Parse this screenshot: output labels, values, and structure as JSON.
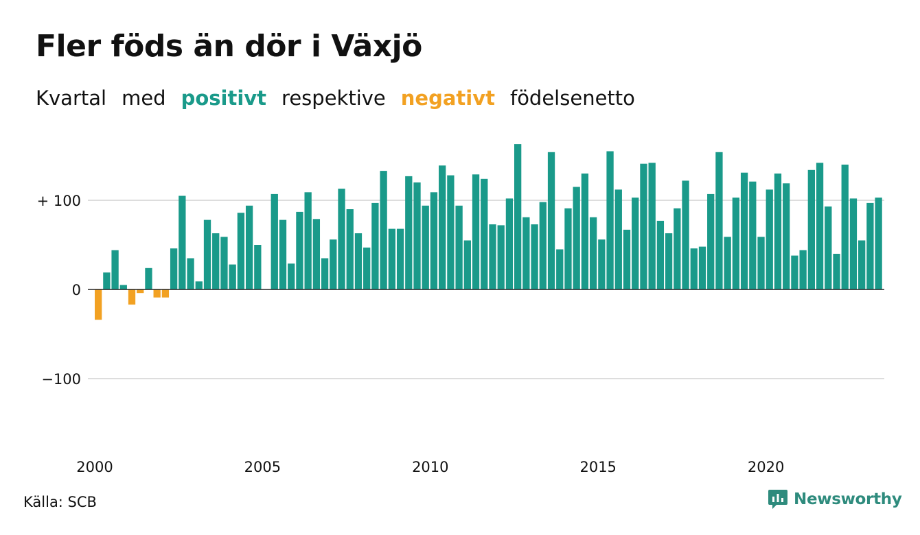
{
  "title": "Fler föds än dör i Växjö",
  "subtitle": {
    "part1": "Kvartal",
    "part2": "med",
    "positive_word": "positivt",
    "part3": "respektive",
    "negative_word": "negativt",
    "part4": "födelsenetto"
  },
  "colors": {
    "positive": "#1a9a8a",
    "negative": "#f2a122",
    "text": "#111111",
    "grid": "#dddddd",
    "brand": "#2e8b7d"
  },
  "source": "Källa: SCB",
  "brand": {
    "name": "Newsworthy",
    "icon": "chart-speech-bubble-icon"
  },
  "chart_data": {
    "type": "bar",
    "title": "Fler föds än dör i Växjö",
    "xlabel": "",
    "ylabel": "",
    "x_start": 2000,
    "periods_per_year": 4,
    "ylim": [
      -190,
      175
    ],
    "grid": true,
    "y_ticks": [
      {
        "value": 100,
        "label": "+ 100"
      },
      {
        "value": 0,
        "label": "0"
      },
      {
        "value": -100,
        "label": "−100"
      }
    ],
    "x_ticks": [
      {
        "value": 2000,
        "label": "2000"
      },
      {
        "value": 2005,
        "label": "2005"
      },
      {
        "value": 2010,
        "label": "2010"
      },
      {
        "value": 2015,
        "label": "2015"
      },
      {
        "value": 2020,
        "label": "2020"
      }
    ],
    "values": [
      -34,
      19,
      44,
      5,
      -17,
      -4,
      24,
      -9,
      -9,
      46,
      105,
      35,
      9,
      78,
      63,
      59,
      28,
      86,
      94,
      50,
      0,
      107,
      78,
      29,
      87,
      109,
      79,
      35,
      56,
      113,
      90,
      63,
      47,
      97,
      133,
      68,
      68,
      127,
      120,
      94,
      109,
      139,
      128,
      94,
      55,
      129,
      124,
      73,
      72,
      102,
      163,
      81,
      73,
      98,
      154,
      45,
      91,
      115,
      130,
      81,
      56,
      155,
      112,
      67,
      103,
      141,
      142,
      77,
      63,
      91,
      122,
      46,
      48,
      107,
      154,
      59,
      103,
      131,
      121,
      59,
      112,
      130,
      119,
      38,
      44,
      134,
      142,
      93,
      40,
      140,
      102,
      55,
      97,
      103
    ]
  }
}
